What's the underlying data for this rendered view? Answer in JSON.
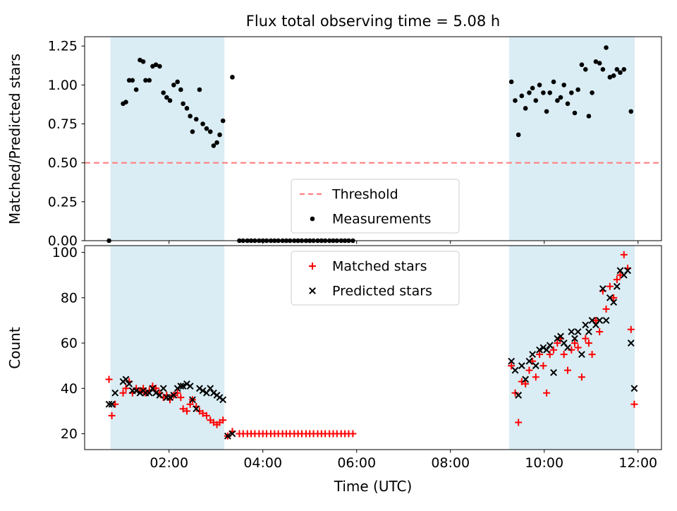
{
  "chart_data": {
    "type": "scatter",
    "title": "Flux total observing time = 5.08 h",
    "xlabel": "Time (UTC)",
    "xlim": [
      0.2,
      12.5
    ],
    "x_ticks": [
      2,
      4,
      6,
      8,
      10,
      12
    ],
    "x_tick_labels": [
      "02:00",
      "04:00",
      "06:00",
      "08:00",
      "10:00",
      "12:00"
    ],
    "shade_color": "#add8e6",
    "shade_opacity": 0.45,
    "shaded_regions": [
      [
        0.75,
        3.18
      ],
      [
        9.25,
        11.93
      ]
    ],
    "top": {
      "ylabel": "Matched/Predicted stars",
      "ylim": [
        0,
        1.31
      ],
      "y_ticks": [
        0,
        0.25,
        0.5,
        0.75,
        1.0,
        1.25
      ],
      "y_tick_labels": [
        "0.00",
        "0.25",
        "0.50",
        "0.75",
        "1.00",
        "1.25"
      ],
      "grid": false,
      "legend_position": "lower center",
      "threshold": {
        "value": 0.5,
        "label": "Threshold",
        "color": "#ff8080"
      },
      "measurements": {
        "label": "Measurements",
        "color": "#000000",
        "points": [
          [
            0.72,
            0.0
          ],
          [
            1.02,
            0.88
          ],
          [
            1.08,
            0.89
          ],
          [
            1.15,
            1.03
          ],
          [
            1.22,
            1.03
          ],
          [
            1.3,
            0.97
          ],
          [
            1.38,
            1.16
          ],
          [
            1.45,
            1.15
          ],
          [
            1.5,
            1.03
          ],
          [
            1.58,
            1.03
          ],
          [
            1.65,
            1.12
          ],
          [
            1.72,
            1.13
          ],
          [
            1.8,
            1.12
          ],
          [
            1.88,
            0.95
          ],
          [
            1.95,
            0.92
          ],
          [
            2.02,
            0.9
          ],
          [
            2.1,
            1.0
          ],
          [
            2.18,
            1.02
          ],
          [
            2.25,
            0.97
          ],
          [
            2.3,
            0.88
          ],
          [
            2.38,
            0.85
          ],
          [
            2.45,
            0.8
          ],
          [
            2.5,
            0.7
          ],
          [
            2.58,
            0.78
          ],
          [
            2.65,
            0.97
          ],
          [
            2.72,
            0.75
          ],
          [
            2.8,
            0.72
          ],
          [
            2.88,
            0.7
          ],
          [
            2.95,
            0.61
          ],
          [
            3.02,
            0.63
          ],
          [
            3.08,
            0.68
          ],
          [
            3.15,
            0.77
          ],
          [
            3.35,
            1.05
          ],
          [
            3.5,
            0
          ],
          [
            3.58,
            0
          ],
          [
            3.67,
            0
          ],
          [
            3.75,
            0
          ],
          [
            3.83,
            0
          ],
          [
            3.92,
            0
          ],
          [
            4.0,
            0
          ],
          [
            4.08,
            0
          ],
          [
            4.17,
            0
          ],
          [
            4.25,
            0
          ],
          [
            4.33,
            0
          ],
          [
            4.42,
            0
          ],
          [
            4.5,
            0
          ],
          [
            4.58,
            0
          ],
          [
            4.67,
            0
          ],
          [
            4.75,
            0
          ],
          [
            4.83,
            0
          ],
          [
            4.92,
            0
          ],
          [
            5.0,
            0
          ],
          [
            5.08,
            0
          ],
          [
            5.17,
            0
          ],
          [
            5.25,
            0
          ],
          [
            5.33,
            0
          ],
          [
            5.42,
            0
          ],
          [
            5.5,
            0
          ],
          [
            5.58,
            0
          ],
          [
            5.67,
            0
          ],
          [
            5.75,
            0
          ],
          [
            5.83,
            0
          ],
          [
            5.92,
            0
          ],
          [
            9.3,
            1.02
          ],
          [
            9.38,
            0.9
          ],
          [
            9.45,
            0.68
          ],
          [
            9.52,
            0.93
          ],
          [
            9.6,
            0.85
          ],
          [
            9.68,
            0.95
          ],
          [
            9.75,
            0.98
          ],
          [
            9.82,
            0.9
          ],
          [
            9.9,
            1.0
          ],
          [
            9.98,
            0.95
          ],
          [
            10.05,
            0.83
          ],
          [
            10.12,
            0.95
          ],
          [
            10.2,
            1.02
          ],
          [
            10.28,
            0.9
          ],
          [
            10.35,
            0.92
          ],
          [
            10.42,
            1.0
          ],
          [
            10.5,
            0.88
          ],
          [
            10.58,
            0.95
          ],
          [
            10.65,
            0.82
          ],
          [
            10.72,
            0.97
          ],
          [
            10.8,
            1.13
          ],
          [
            10.88,
            1.1
          ],
          [
            10.95,
            0.8
          ],
          [
            11.02,
            0.95
          ],
          [
            11.1,
            1.15
          ],
          [
            11.18,
            1.14
          ],
          [
            11.25,
            1.1
          ],
          [
            11.32,
            1.24
          ],
          [
            11.4,
            1.05
          ],
          [
            11.48,
            1.06
          ],
          [
            11.55,
            1.1
          ],
          [
            11.62,
            1.08
          ],
          [
            11.7,
            1.1
          ],
          [
            11.85,
            0.83
          ]
        ]
      }
    },
    "bottom": {
      "ylabel": "Count",
      "ylim": [
        13,
        103
      ],
      "y_ticks": [
        20,
        40,
        60,
        80,
        100
      ],
      "y_tick_labels": [
        "20",
        "40",
        "60",
        "80",
        "100"
      ],
      "grid": false,
      "legend_position": "upper center",
      "matched": {
        "label": "Matched stars",
        "color": "#ff0000",
        "points": [
          [
            0.72,
            44
          ],
          [
            0.78,
            28
          ],
          [
            0.85,
            33
          ],
          [
            1.02,
            38
          ],
          [
            1.08,
            40
          ],
          [
            1.15,
            43
          ],
          [
            1.22,
            38
          ],
          [
            1.3,
            40
          ],
          [
            1.38,
            39
          ],
          [
            1.45,
            40
          ],
          [
            1.5,
            38
          ],
          [
            1.58,
            39
          ],
          [
            1.65,
            41
          ],
          [
            1.72,
            40
          ],
          [
            1.8,
            38
          ],
          [
            1.88,
            36
          ],
          [
            1.95,
            37
          ],
          [
            2.02,
            35
          ],
          [
            2.1,
            37
          ],
          [
            2.18,
            38
          ],
          [
            2.25,
            36
          ],
          [
            2.3,
            31
          ],
          [
            2.38,
            30
          ],
          [
            2.45,
            33
          ],
          [
            2.5,
            35
          ],
          [
            2.58,
            32
          ],
          [
            2.65,
            30
          ],
          [
            2.72,
            29
          ],
          [
            2.8,
            28
          ],
          [
            2.88,
            26
          ],
          [
            2.95,
            25
          ],
          [
            3.02,
            24
          ],
          [
            3.08,
            25
          ],
          [
            3.15,
            26
          ],
          [
            3.25,
            19
          ],
          [
            3.35,
            21
          ],
          [
            3.5,
            20
          ],
          [
            3.58,
            20
          ],
          [
            3.67,
            20
          ],
          [
            3.75,
            20
          ],
          [
            3.83,
            20
          ],
          [
            3.92,
            20
          ],
          [
            4.0,
            20
          ],
          [
            4.08,
            20
          ],
          [
            4.17,
            20
          ],
          [
            4.25,
            20
          ],
          [
            4.33,
            20
          ],
          [
            4.42,
            20
          ],
          [
            4.5,
            20
          ],
          [
            4.58,
            20
          ],
          [
            4.67,
            20
          ],
          [
            4.75,
            20
          ],
          [
            4.83,
            20
          ],
          [
            4.92,
            20
          ],
          [
            5.0,
            20
          ],
          [
            5.08,
            20
          ],
          [
            5.17,
            20
          ],
          [
            5.25,
            20
          ],
          [
            5.33,
            20
          ],
          [
            5.42,
            20
          ],
          [
            5.5,
            20
          ],
          [
            5.58,
            20
          ],
          [
            5.67,
            20
          ],
          [
            5.75,
            20
          ],
          [
            5.83,
            20
          ],
          [
            5.92,
            20
          ],
          [
            9.3,
            50
          ],
          [
            9.38,
            38
          ],
          [
            9.45,
            25
          ],
          [
            9.52,
            43
          ],
          [
            9.6,
            42
          ],
          [
            9.68,
            48
          ],
          [
            9.75,
            52
          ],
          [
            9.82,
            45
          ],
          [
            9.9,
            55
          ],
          [
            9.98,
            50
          ],
          [
            10.05,
            38
          ],
          [
            10.12,
            55
          ],
          [
            10.2,
            57
          ],
          [
            10.28,
            60
          ],
          [
            10.35,
            62
          ],
          [
            10.42,
            55
          ],
          [
            10.5,
            48
          ],
          [
            10.58,
            57
          ],
          [
            10.65,
            60
          ],
          [
            10.72,
            58
          ],
          [
            10.8,
            45
          ],
          [
            10.88,
            62
          ],
          [
            10.95,
            60
          ],
          [
            11.02,
            55
          ],
          [
            11.1,
            70
          ],
          [
            11.18,
            65
          ],
          [
            11.25,
            83
          ],
          [
            11.32,
            75
          ],
          [
            11.4,
            85
          ],
          [
            11.48,
            80
          ],
          [
            11.55,
            88
          ],
          [
            11.62,
            90
          ],
          [
            11.7,
            99
          ],
          [
            11.78,
            93
          ],
          [
            11.85,
            66
          ],
          [
            11.92,
            33
          ]
        ]
      },
      "predicted": {
        "label": "Predicted stars",
        "color": "#000000",
        "points": [
          [
            0.72,
            33
          ],
          [
            0.78,
            33
          ],
          [
            0.85,
            38
          ],
          [
            1.02,
            43
          ],
          [
            1.08,
            44
          ],
          [
            1.15,
            42
          ],
          [
            1.22,
            39
          ],
          [
            1.3,
            39
          ],
          [
            1.38,
            38
          ],
          [
            1.45,
            39
          ],
          [
            1.5,
            38
          ],
          [
            1.58,
            38
          ],
          [
            1.65,
            40
          ],
          [
            1.72,
            38
          ],
          [
            1.8,
            37
          ],
          [
            1.88,
            40
          ],
          [
            1.95,
            36
          ],
          [
            2.02,
            36
          ],
          [
            2.1,
            37
          ],
          [
            2.18,
            40
          ],
          [
            2.25,
            41
          ],
          [
            2.3,
            41
          ],
          [
            2.38,
            42
          ],
          [
            2.45,
            41
          ],
          [
            2.5,
            35
          ],
          [
            2.58,
            31
          ],
          [
            2.65,
            40
          ],
          [
            2.72,
            39
          ],
          [
            2.8,
            38
          ],
          [
            2.88,
            40
          ],
          [
            2.95,
            38
          ],
          [
            3.02,
            37
          ],
          [
            3.08,
            36
          ],
          [
            3.15,
            35
          ],
          [
            3.25,
            19
          ],
          [
            3.35,
            20
          ],
          [
            9.3,
            52
          ],
          [
            9.38,
            48
          ],
          [
            9.45,
            37
          ],
          [
            9.52,
            50
          ],
          [
            9.6,
            44
          ],
          [
            9.68,
            52
          ],
          [
            9.75,
            55
          ],
          [
            9.82,
            50
          ],
          [
            9.9,
            57
          ],
          [
            9.98,
            58
          ],
          [
            10.05,
            57
          ],
          [
            10.12,
            59
          ],
          [
            10.2,
            47
          ],
          [
            10.28,
            62
          ],
          [
            10.35,
            63
          ],
          [
            10.42,
            60
          ],
          [
            10.5,
            58
          ],
          [
            10.58,
            65
          ],
          [
            10.65,
            62
          ],
          [
            10.72,
            65
          ],
          [
            10.8,
            55
          ],
          [
            10.88,
            68
          ],
          [
            10.95,
            65
          ],
          [
            11.02,
            70
          ],
          [
            11.1,
            68
          ],
          [
            11.18,
            70
          ],
          [
            11.25,
            84
          ],
          [
            11.32,
            70
          ],
          [
            11.4,
            80
          ],
          [
            11.48,
            78
          ],
          [
            11.55,
            85
          ],
          [
            11.62,
            92
          ],
          [
            11.7,
            90
          ],
          [
            11.78,
            92
          ],
          [
            11.85,
            60
          ],
          [
            11.92,
            40
          ]
        ]
      }
    }
  }
}
